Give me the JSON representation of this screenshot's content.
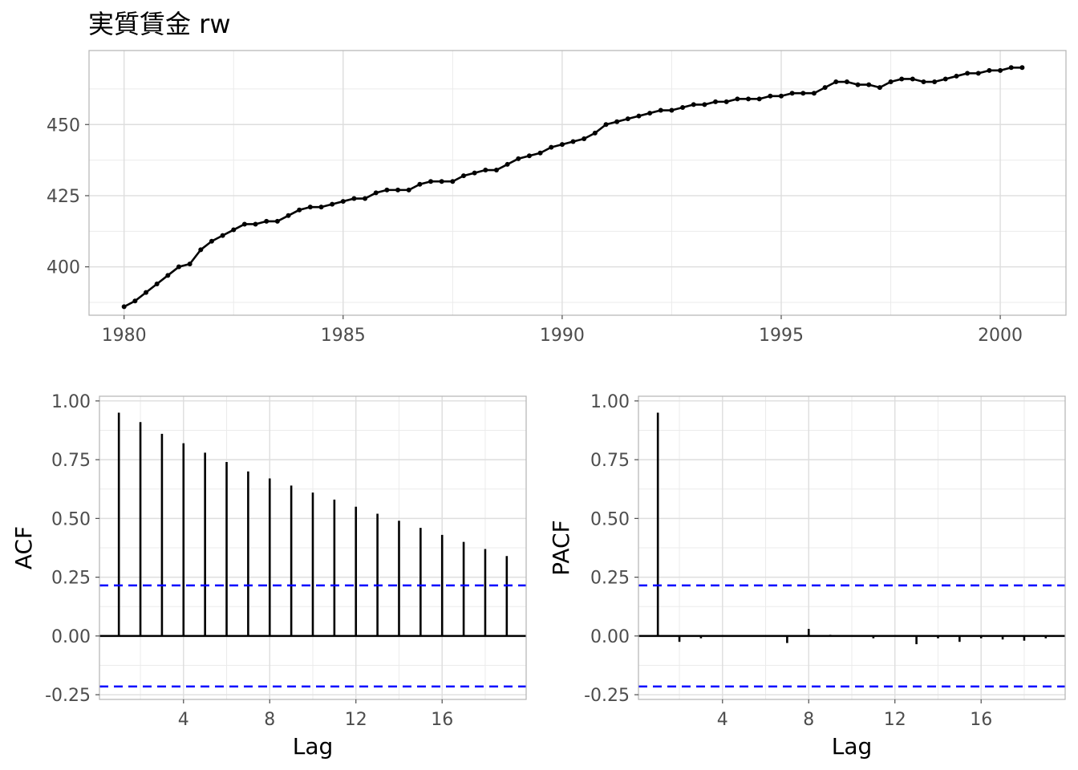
{
  "chart_data": [
    {
      "type": "line",
      "title": "実質賃金 rw",
      "xlabel": "",
      "ylabel": "",
      "x_start": 1980,
      "x_step": 0.25,
      "values": [
        386,
        388,
        391,
        394,
        397,
        400,
        401,
        406,
        409,
        411,
        413,
        415,
        415,
        416,
        416,
        418,
        420,
        421,
        421,
        422,
        423,
        424,
        424,
        426,
        427,
        427,
        427,
        429,
        430,
        430,
        430,
        432,
        433,
        434,
        434,
        436,
        438,
        439,
        440,
        442,
        443,
        444,
        445,
        447,
        450,
        451,
        452,
        453,
        454,
        455,
        455,
        456,
        457,
        457,
        458,
        458,
        459,
        459,
        459,
        460,
        460,
        461,
        461,
        461,
        463,
        465,
        465,
        464,
        464,
        463,
        465,
        466,
        466,
        465,
        465,
        466,
        467,
        468,
        468,
        469,
        469,
        470,
        470
      ],
      "x_ticks": [
        1980,
        1985,
        1990,
        1995,
        2000
      ],
      "y_ticks": [
        400,
        425,
        450
      ],
      "xlim": [
        1979.2,
        2001.5
      ],
      "ylim": [
        383,
        476
      ],
      "grid": true,
      "legend": "none"
    },
    {
      "type": "bar",
      "title": "",
      "xlabel": "Lag",
      "ylabel": "ACF",
      "lags": [
        1,
        2,
        3,
        4,
        5,
        6,
        7,
        8,
        9,
        10,
        11,
        12,
        13,
        14,
        15,
        16,
        17,
        18,
        19
      ],
      "values": [
        0.95,
        0.91,
        0.86,
        0.82,
        0.78,
        0.74,
        0.7,
        0.67,
        0.64,
        0.61,
        0.58,
        0.55,
        0.52,
        0.49,
        0.46,
        0.43,
        0.4,
        0.37,
        0.34
      ],
      "conf_bound": 0.215,
      "x_ticks": [
        4,
        8,
        12,
        16
      ],
      "y_ticks": [
        -0.25,
        0.0,
        0.25,
        0.5,
        0.75,
        1.0
      ],
      "y_tick_labels": [
        "-0.25",
        "0.00",
        "0.25",
        "0.50",
        "0.75",
        "1.00"
      ],
      "xlim": [
        0.1,
        19.9
      ],
      "ylim": [
        -0.27,
        1.02
      ],
      "conf_color": "#0000ff"
    },
    {
      "type": "bar",
      "title": "",
      "xlabel": "Lag",
      "ylabel": "PACF",
      "lags": [
        1,
        2,
        3,
        4,
        5,
        6,
        7,
        8,
        9,
        10,
        11,
        12,
        13,
        14,
        15,
        16,
        17,
        18,
        19
      ],
      "values": [
        0.95,
        -0.025,
        -0.01,
        0.0,
        0.0,
        0.0,
        -0.03,
        0.03,
        0.005,
        0.0,
        -0.01,
        0.0,
        -0.035,
        -0.01,
        -0.025,
        -0.01,
        -0.015,
        -0.02,
        -0.01
      ],
      "conf_bound": 0.215,
      "x_ticks": [
        4,
        8,
        12,
        16
      ],
      "y_ticks": [
        -0.25,
        0.0,
        0.25,
        0.5,
        0.75,
        1.0
      ],
      "y_tick_labels": [
        "-0.25",
        "0.00",
        "0.25",
        "0.50",
        "0.75",
        "1.00"
      ],
      "xlim": [
        0.1,
        19.9
      ],
      "ylim": [
        -0.27,
        1.02
      ],
      "conf_color": "#0000ff"
    }
  ]
}
